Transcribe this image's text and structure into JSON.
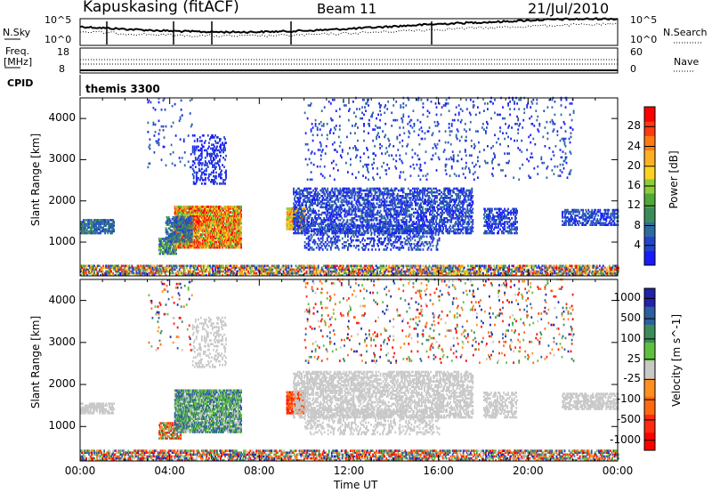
{
  "header": {
    "station": "Kapuskasing (fitACF)",
    "beam": "Beam 11",
    "date": "21/Jul/2010"
  },
  "sky_panel": {
    "left_label": "N.Sky",
    "right_label": "N.Search",
    "left_ticks": [
      "10^5",
      "10^0"
    ],
    "right_ticks": [
      "10^5",
      "10^0"
    ]
  },
  "freq_panel": {
    "left_label": "Freq.",
    "left_unit": "[MHz]",
    "left_ticks": [
      "18",
      "8"
    ],
    "right_label": "Nave",
    "right_ticks": [
      "60",
      "0"
    ],
    "cpid_label": "CPID",
    "cpid_value": "themis 3300"
  },
  "chart_data": [
    {
      "type": "heatmap",
      "name": "power",
      "ylabel": "Slant Range [km]",
      "ylim": [
        180,
        4500
      ],
      "yticks": [
        1000,
        2000,
        3000,
        4000
      ],
      "colorbar_label": "Power [dB]",
      "colorbar_ticks": [
        "4",
        "8",
        "12",
        "16",
        "20",
        "24",
        "28"
      ],
      "colors": [
        "#1a1aff",
        "#2244cc",
        "#2d6aa0",
        "#3c8c5a",
        "#4fa838",
        "#8ccc3a",
        "#ffd21e",
        "#ffb020",
        "#ff7a10",
        "#ff3a10",
        "#ff0000"
      ]
    },
    {
      "type": "heatmap",
      "name": "velocity",
      "ylabel": "Slant Range [km]",
      "ylim": [
        180,
        4500
      ],
      "yticks": [
        1000,
        2000,
        3000,
        4000
      ],
      "colorbar_label": "Velocity [m s^-1]",
      "colorbar_ticks": [
        "1000",
        "500",
        "100",
        "25",
        "-25",
        "-100",
        "-500",
        "-1000"
      ],
      "colors": [
        "#2222aa",
        "#2d5fa0",
        "#3c8c5a",
        "#5fc040",
        "#c8c8c8",
        "#ff9020",
        "#ff6a10",
        "#ff2a10",
        "#ff0000"
      ]
    }
  ],
  "xaxis": {
    "label": "Time UT",
    "ticks": [
      "00:00",
      "04:00",
      "08:00",
      "12:00",
      "16:00",
      "20:00",
      "00:00"
    ]
  }
}
